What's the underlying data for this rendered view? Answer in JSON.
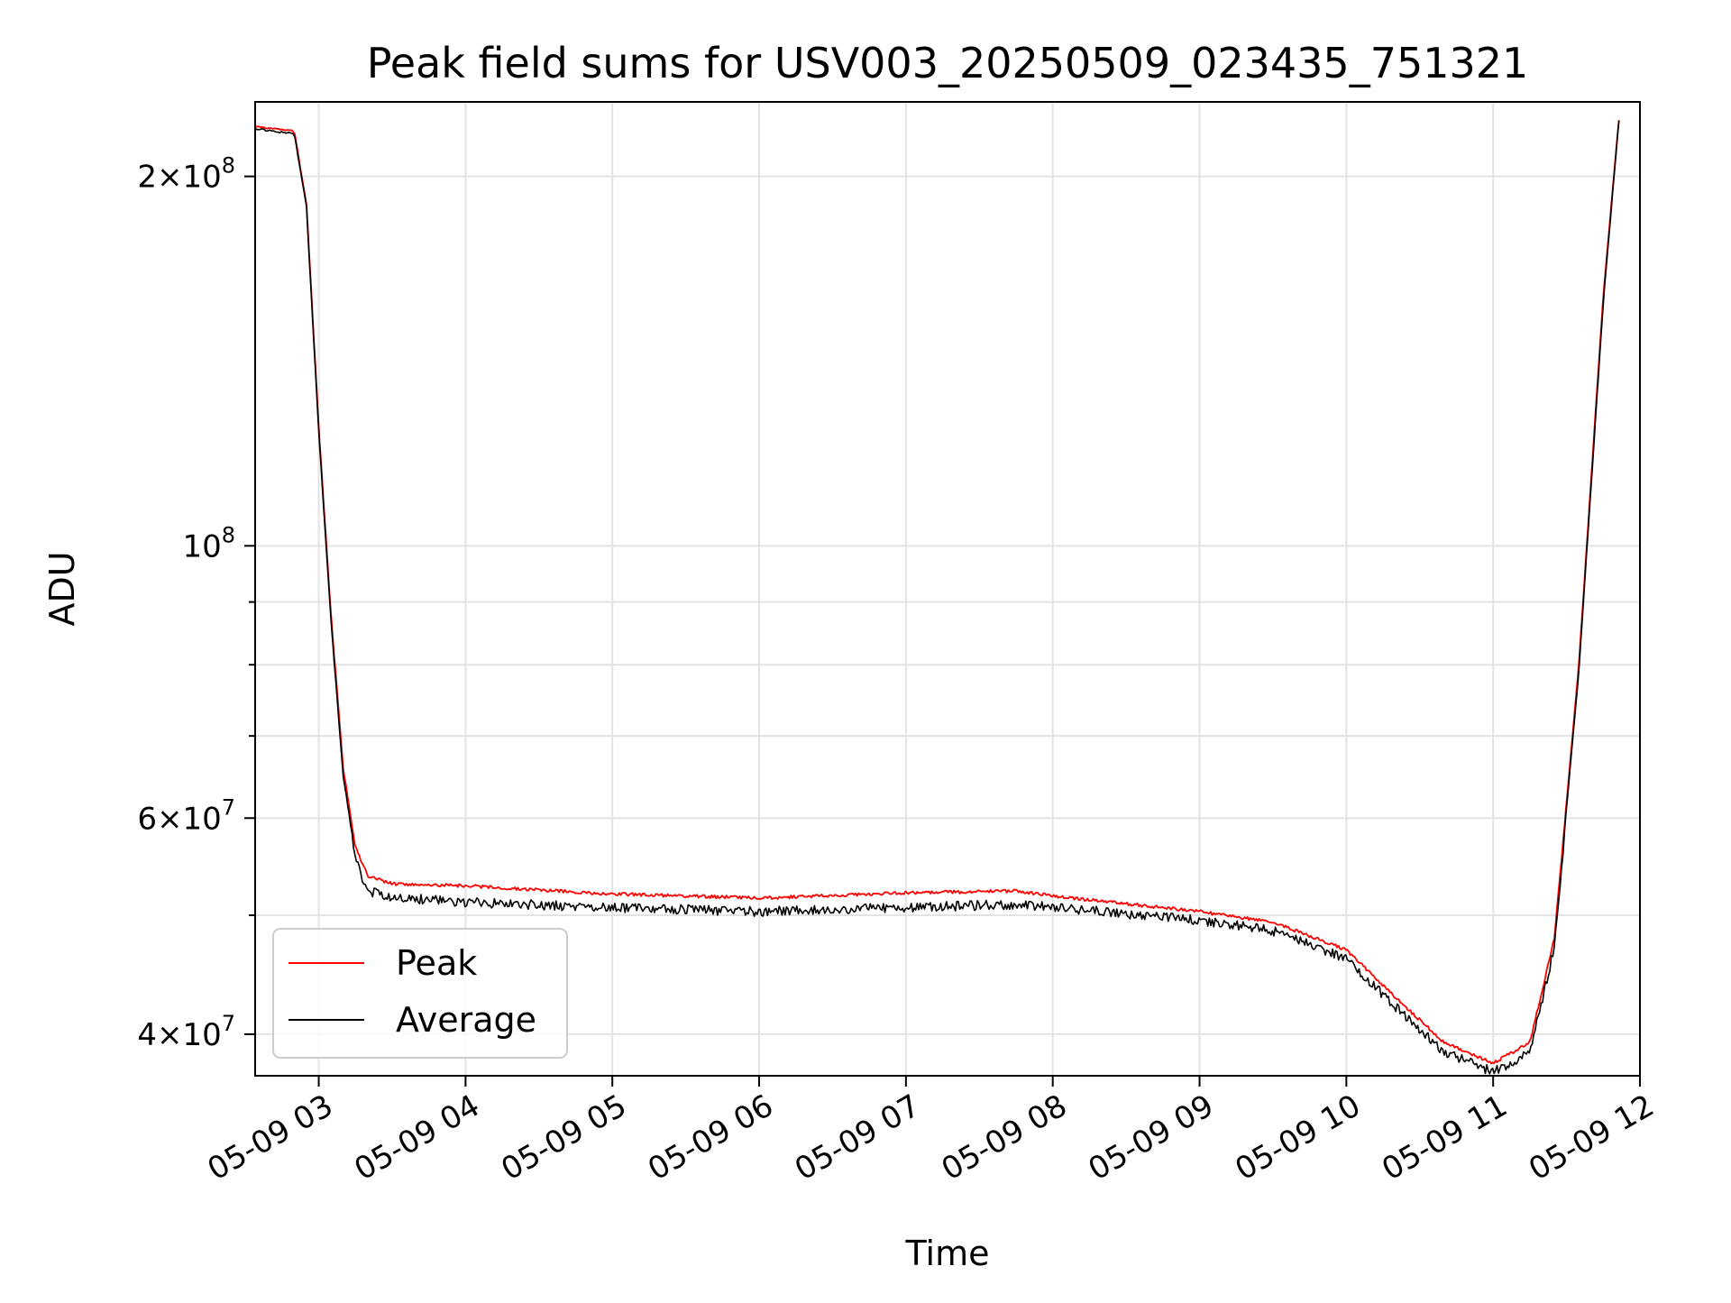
{
  "chart_data": {
    "type": "line",
    "title": "Peak field sums for USV003_20250509_023435_751321",
    "xlabel": "Time",
    "ylabel": "ADU",
    "yscale": "log",
    "ylim": [
      37000000,
      230000000
    ],
    "xlim": [
      "05-09 02:34",
      "05-09 12:00"
    ],
    "grid": true,
    "legend_position": "lower-left",
    "x_ticks": [
      "05-09 03",
      "05-09 04",
      "05-09 05",
      "05-09 06",
      "05-09 07",
      "05-09 08",
      "05-09 09",
      "05-09 10",
      "05-09 11",
      "05-09 12"
    ],
    "y_ticks": [
      {
        "value": 200000000,
        "mantissa": "2",
        "exponent": "8"
      },
      {
        "value": 100000000,
        "mantissa": "",
        "exponent": "8"
      },
      {
        "value": 60000000,
        "mantissa": "6",
        "exponent": "7"
      },
      {
        "value": 40000000,
        "mantissa": "4",
        "exponent": "7"
      }
    ],
    "y_minor_ticks": [
      50000000,
      70000000,
      80000000,
      90000000
    ],
    "series": [
      {
        "name": "Peak",
        "color": "#ff0000",
        "x": [
          "05-09 02:34",
          "05-09 02:50",
          "05-09 02:55",
          "05-09 03:00",
          "05-09 03:05",
          "05-09 03:10",
          "05-09 03:15",
          "05-09 03:20",
          "05-09 03:30",
          "05-09 04:00",
          "05-09 05:00",
          "05-09 06:00",
          "05-09 07:00",
          "05-09 07:45",
          "05-09 08:00",
          "05-09 09:00",
          "05-09 09:30",
          "05-09 10:00",
          "05-09 10:20",
          "05-09 10:40",
          "05-09 11:00",
          "05-09 11:15",
          "05-09 11:25",
          "05-09 11:35",
          "05-09 11:45",
          "05-09 11:52"
        ],
        "values": [
          220000000,
          218000000,
          190000000,
          125000000,
          88000000,
          66000000,
          57000000,
          54000000,
          53200000,
          53000000,
          52200000,
          51800000,
          52300000,
          52500000,
          52000000,
          50500000,
          49500000,
          47000000,
          43000000,
          39500000,
          38000000,
          39500000,
          48000000,
          80000000,
          160000000,
          230000000
        ]
      },
      {
        "name": "Average",
        "color": "#000000",
        "x": [
          "05-09 02:34",
          "05-09 02:50",
          "05-09 02:55",
          "05-09 03:00",
          "05-09 03:05",
          "05-09 03:10",
          "05-09 03:15",
          "05-09 03:20",
          "05-09 03:30",
          "05-09 04:00",
          "05-09 05:00",
          "05-09 06:00",
          "05-09 07:00",
          "05-09 07:45",
          "05-09 08:00",
          "05-09 09:00",
          "05-09 09:30",
          "05-09 10:00",
          "05-09 10:20",
          "05-09 10:40",
          "05-09 11:00",
          "05-09 11:15",
          "05-09 11:25",
          "05-09 11:35",
          "05-09 11:45",
          "05-09 11:52"
        ],
        "values": [
          219000000,
          217000000,
          189000000,
          124000000,
          87000000,
          65000000,
          56000000,
          52800000,
          52200000,
          51700000,
          51200000,
          50800000,
          51200000,
          51500000,
          51200000,
          50000000,
          49000000,
          46500000,
          42500000,
          39000000,
          37600000,
          39000000,
          47500000,
          79000000,
          158000000,
          230000000
        ]
      }
    ]
  }
}
